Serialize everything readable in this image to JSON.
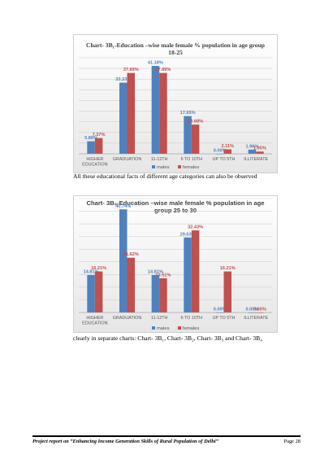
{
  "chart_data": [
    {
      "type": "bar",
      "title": "Chart- 3B₁-Education –wise male female % population in age group 18-25",
      "categories": [
        "HIGHER EDUCATION",
        "GRADUATION",
        "11-12TH",
        "6 TO 10TH",
        "UP TO 5TH",
        "ILLITERATE"
      ],
      "series": [
        {
          "name": "males",
          "values": [
            5.88,
            33.33,
            41.18,
            17.65,
            0.0,
            1.96
          ],
          "labels": [
            "5.88%",
            "33.33%",
            "41.18%",
            "17.65%",
            "0.00%",
            "1.96%"
          ]
        },
        {
          "name": "females",
          "values": [
            7.37,
            37.89,
            37.89,
            13.68,
            2.11,
            1.05
          ],
          "labels": [
            "7.37%",
            "37.89%",
            "37.89%",
            "13.68%",
            "2.11%",
            "1.05%"
          ]
        }
      ],
      "ylim": [
        0,
        45
      ],
      "grid": true,
      "legend": "bottom"
    },
    {
      "type": "bar",
      "title": "Chart- 3B₂-Education –wise male female % population in age group 25 to 30",
      "categories": [
        "HIGHER EDUCATION",
        "GRADUATION",
        "11-12TH",
        "6 TO 10TH",
        "UP TO 5TH",
        "ILLITERATE"
      ],
      "series": [
        {
          "name": "males",
          "values": [
            14.81,
            40.74,
            14.81,
            29.63,
            0.0,
            0.0
          ],
          "labels": [
            "14.81%",
            "40.74%",
            "14.81%",
            "29.63%",
            "0.00%",
            "0.00%"
          ]
        },
        {
          "name": "females",
          "values": [
            16.21,
            21.62,
            13.51,
            32.43,
            16.21,
            0.0
          ],
          "labels": [
            "16.21%",
            "21.62%",
            "13.51%",
            "32.43%",
            "16.21%",
            "0.00%"
          ]
        }
      ],
      "ylim": [
        0,
        45
      ],
      "grid": true,
      "legend": "bottom"
    }
  ],
  "colors": {
    "males": "#4f81bd",
    "females": "#c0504d"
  },
  "text": {
    "para1": "All these educational facts of different age categories can also be observed",
    "para2": "clearly in separate charts: Chart- 3B₁, Chart- 3B₂, Chart- 3B₃ and Chart- 3B₄",
    "footer_left": "Project report on “Enhancing Income Generation Skills of Rural Population of Delhi”",
    "footer_right": "Page 28"
  }
}
